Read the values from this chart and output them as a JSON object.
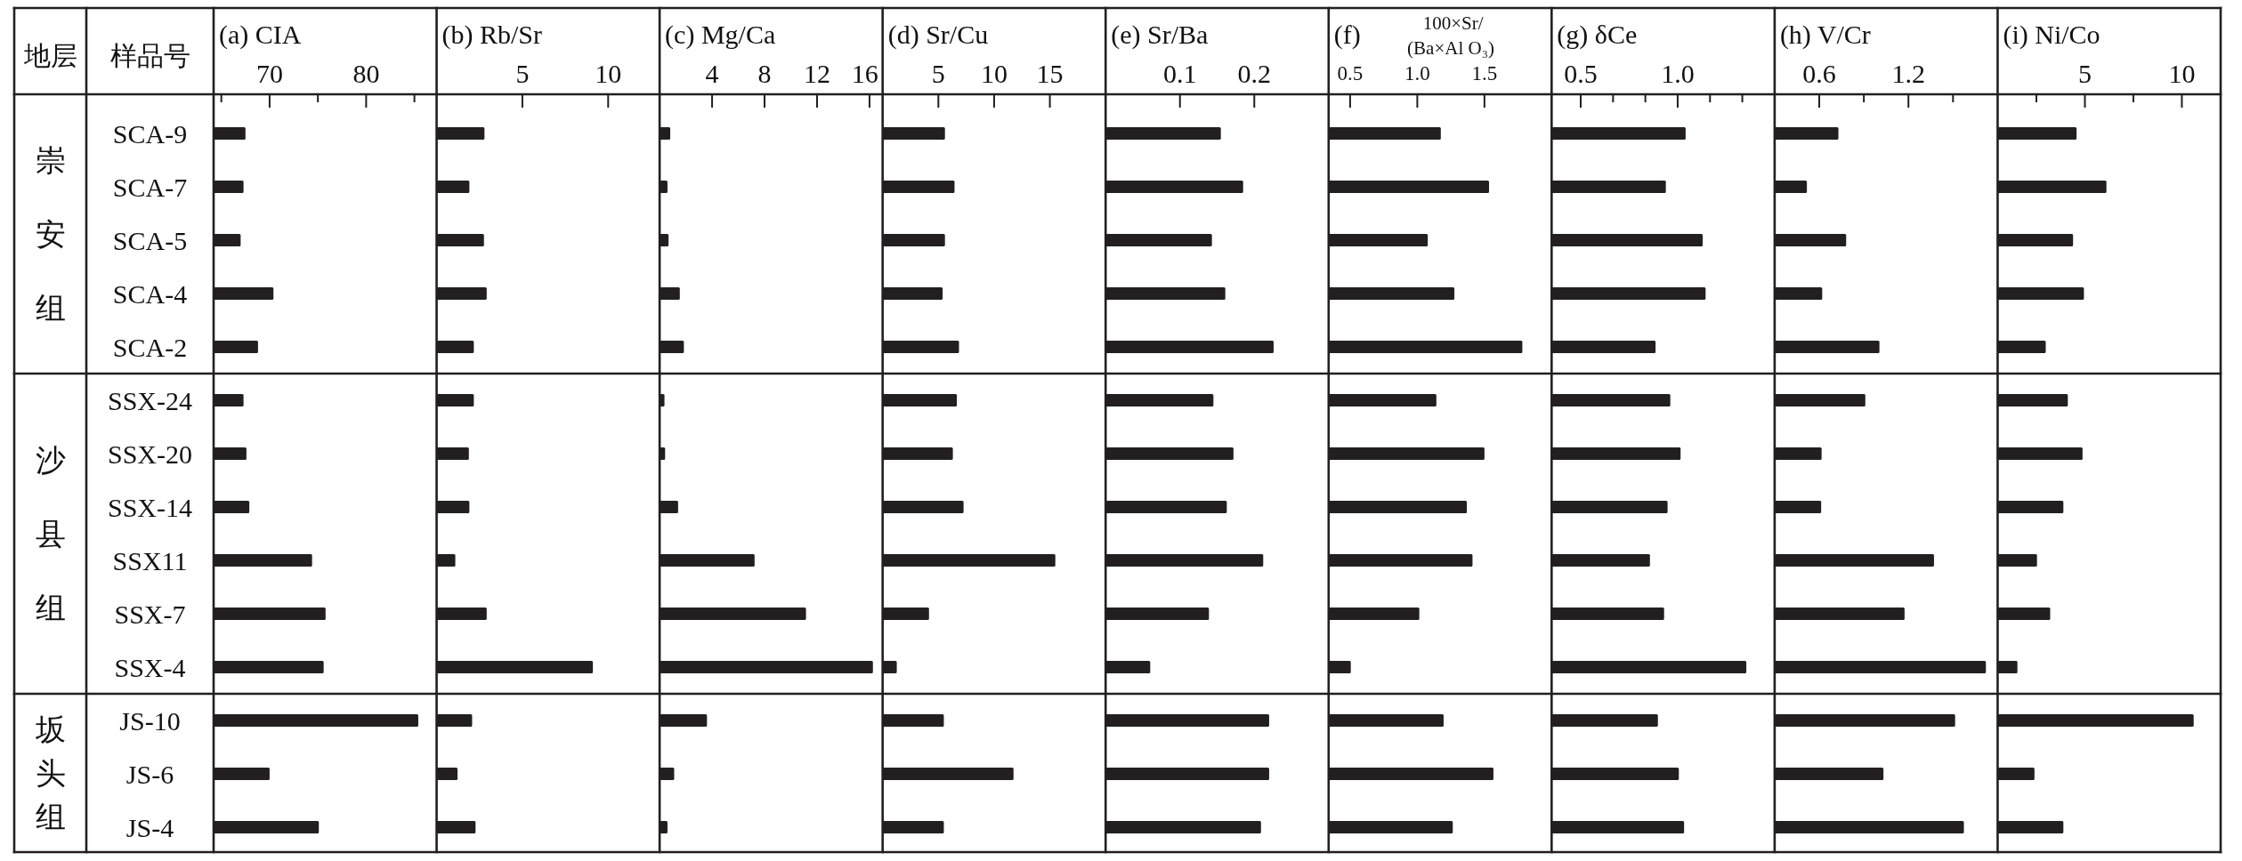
{
  "chart_data": [
    {
      "type": "bar",
      "orientation": "horizontal",
      "title": "(a) CIA",
      "color": "#231f20",
      "categories": [
        "SCA-9",
        "SCA-7",
        "SCA-5",
        "SCA-4",
        "SCA-2",
        "SSX-24",
        "SSX-20",
        "SSX-14",
        "SSX11",
        "SSX-7",
        "SSX-4",
        "JS-10",
        "JS-6",
        "JS-4"
      ],
      "values": [
        67.5,
        67.3,
        67.0,
        70.4,
        68.8,
        67.3,
        67.6,
        67.9,
        74.4,
        75.8,
        75.6,
        85.4,
        70.0,
        75.1
      ],
      "xlim": [
        64.2,
        87.3
      ],
      "xticks": [
        {
          "value": 65,
          "label": null
        },
        70,
        {
          "value": 75,
          "label": null
        },
        80,
        {
          "value": 85,
          "label": null
        }
      ],
      "annotations": [
        "地层",
        "样品号",
        "崇安组",
        "沙县组",
        "坂头组"
      ]
    },
    {
      "type": "bar",
      "orientation": "horizontal",
      "title": "(b) Rb/Sr",
      "color": "#231f20",
      "tick_labels": "x",
      "values": [
        2.79,
        1.91,
        2.76,
        2.92,
        2.17,
        2.17,
        1.88,
        1.91,
        1.09,
        2.92,
        9.11,
        2.07,
        1.22,
        2.27
      ],
      "xlim": [
        0,
        13
      ],
      "xticks": [
        5,
        10
      ]
    },
    {
      "type": "bar",
      "orientation": "horizontal",
      "title": "(c) Mg/Ca",
      "color": "#231f20",
      "tick_labels": "x",
      "values": [
        0.81,
        0.6,
        0.68,
        1.54,
        1.85,
        0.37,
        0.42,
        1.41,
        7.24,
        11.16,
        16.26,
        3.61,
        1.11,
        0.6
      ],
      "xlim": [
        0,
        17
      ],
      "xticks": [
        4,
        8,
        12,
        16
      ]
    },
    {
      "type": "bar",
      "orientation": "horizontal",
      "title": "(d) Sr/Cu",
      "color": "#231f20",
      "tick_labels": "x",
      "values": [
        5.59,
        6.45,
        5.59,
        5.38,
        6.85,
        6.66,
        6.3,
        7.26,
        15.49,
        4.16,
        1.27,
        5.49,
        11.74,
        5.49
      ],
      "xlim": [
        0,
        20
      ],
      "xticks": [
        5,
        10,
        15
      ]
    },
    {
      "type": "bar",
      "orientation": "horizontal",
      "title": "(e) Sr/Ba",
      "color": "#231f20",
      "tick_labels": "x",
      "values": [
        0.155,
        0.185,
        0.143,
        0.161,
        0.226,
        0.145,
        0.172,
        0.163,
        0.212,
        0.139,
        0.06,
        0.22,
        0.22,
        0.209
      ],
      "xlim": [
        0,
        0.3
      ],
      "xticks": [
        0.1,
        0.2
      ]
    },
    {
      "type": "bar",
      "orientation": "horizontal",
      "title": "(f) 100×Sr/(Ba×Al O₃)",
      "color": "#231f20",
      "tick_labels": "x",
      "values": [
        1.175,
        1.534,
        1.078,
        1.276,
        1.782,
        1.142,
        1.5,
        1.369,
        1.411,
        1.015,
        0.505,
        1.196,
        1.567,
        1.264
      ],
      "xlim": [
        0.34,
        2.0
      ],
      "xticks": [
        0.5,
        {
          "value": 1,
          "label": "1.0"
        },
        1.5
      ]
    },
    {
      "type": "bar",
      "orientation": "horizontal",
      "title": "(g) δCe",
      "color": "#231f20",
      "tick_labels": "x",
      "values": [
        1.041,
        0.939,
        1.129,
        1.144,
        0.886,
        0.962,
        1.015,
        0.948,
        0.857,
        0.93,
        1.354,
        0.898,
        1.006,
        1.033
      ],
      "xlim": [
        0.35,
        1.5
      ],
      "xticks": [
        0.5,
        {
          "value": 0.6667,
          "label": null
        },
        {
          "value": 0.8333,
          "label": null
        },
        {
          "value": 1,
          "label": "1.0"
        },
        {
          "value": 1.1667,
          "label": null
        },
        {
          "value": 1.3333,
          "label": null
        }
      ]
    },
    {
      "type": "bar",
      "orientation": "horizontal",
      "title": "(h) V/Cr",
      "color": "#231f20",
      "tick_labels": "x",
      "values": [
        0.729,
        0.517,
        0.781,
        0.62,
        1.005,
        0.91,
        0.616,
        0.613,
        1.372,
        1.174,
        1.721,
        1.514,
        1.032,
        1.573
      ],
      "xlim": [
        0.3,
        1.8
      ],
      "xticks": [
        0.6,
        {
          "value": 0.9,
          "label": null
        },
        1.2,
        {
          "value": 1.5,
          "label": null
        }
      ]
    },
    {
      "type": "bar",
      "orientation": "horizontal",
      "title": "(i) Ni/Co",
      "color": "#231f20",
      "tick_labels": "x",
      "values": [
        4.57,
        6.11,
        4.39,
        4.95,
        2.98,
        4.12,
        4.88,
        3.89,
        2.53,
        3.21,
        1.52,
        10.61,
        2.4,
        3.89
      ],
      "xlim": [
        0.5,
        12
      ],
      "xticks": [
        {
          "value": 2.5,
          "label": null
        },
        5,
        {
          "value": 7.5,
          "label": null
        },
        10
      ]
    }
  ]
}
